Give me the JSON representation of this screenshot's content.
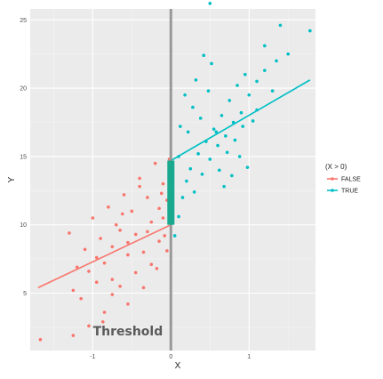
{
  "chart_data": {
    "type": "scatter",
    "title": "",
    "xlabel": "X",
    "ylabel": "Y",
    "xlim": [
      -1.8,
      1.85
    ],
    "ylim": [
      0.8,
      25.8
    ],
    "x_ticks": [
      -1,
      0,
      1
    ],
    "y_ticks": [
      5,
      10,
      15,
      20,
      25
    ],
    "grid": true,
    "legend": {
      "title": "(X > 0)",
      "position": "right"
    },
    "annotation": {
      "text": "Threshold",
      "x": -0.55,
      "y": 1.9
    },
    "threshold_x": 0,
    "series": [
      {
        "name": "FALSE",
        "color": "#F8766D",
        "fit_line": {
          "x": [
            -1.7,
            0
          ],
          "y": [
            5.4,
            10.0
          ]
        },
        "points": [
          [
            -1.67,
            1.6
          ],
          [
            -1.25,
            1.9
          ],
          [
            -1.05,
            2.6
          ],
          [
            -0.87,
            2.9
          ],
          [
            -1.25,
            5.2
          ],
          [
            -1.15,
            4.6
          ],
          [
            -1.05,
            6.6
          ],
          [
            -0.95,
            5.8
          ],
          [
            -0.85,
            7.2
          ],
          [
            -0.75,
            6.0
          ],
          [
            -0.65,
            5.5
          ],
          [
            -0.55,
            7.8
          ],
          [
            -0.45,
            6.5
          ],
          [
            -0.35,
            8.0
          ],
          [
            -0.25,
            7.1
          ],
          [
            -0.15,
            8.8
          ],
          [
            -0.05,
            8.1
          ],
          [
            -1.1,
            8.2
          ],
          [
            -0.9,
            9.0
          ],
          [
            -0.7,
            10.0
          ],
          [
            -0.5,
            11.0
          ],
          [
            -0.3,
            12.0
          ],
          [
            -0.1,
            13.0
          ],
          [
            -0.2,
            14.5
          ],
          [
            -0.4,
            13.4
          ],
          [
            -0.6,
            12.2
          ],
          [
            -0.8,
            11.3
          ],
          [
            -1.0,
            10.5
          ],
          [
            -0.3,
            9.5
          ],
          [
            -0.1,
            10.5
          ],
          [
            -0.05,
            11.8
          ],
          [
            -0.02,
            14.8
          ],
          [
            -0.15,
            11.2
          ],
          [
            -0.25,
            10.2
          ],
          [
            -0.45,
            9.3
          ],
          [
            -0.55,
            8.7
          ],
          [
            -0.65,
            9.6
          ],
          [
            -0.75,
            8.4
          ],
          [
            -0.95,
            7.6
          ],
          [
            -1.2,
            6.9
          ],
          [
            -1.3,
            9.4
          ],
          [
            -0.35,
            5.4
          ],
          [
            -0.55,
            4.2
          ],
          [
            -0.85,
            3.6
          ],
          [
            -0.75,
            4.9
          ],
          [
            -0.4,
            12.8
          ],
          [
            -0.12,
            12.3
          ],
          [
            -0.08,
            9.2
          ],
          [
            -0.18,
            6.8
          ],
          [
            -0.62,
            10.8
          ]
        ]
      },
      {
        "name": "TRUE",
        "color": "#00BFC4",
        "fit_line": {
          "x": [
            0,
            1.78
          ],
          "y": [
            14.7,
            20.6
          ]
        },
        "points": [
          [
            0.05,
            9.2
          ],
          [
            0.1,
            10.6
          ],
          [
            0.15,
            12.0
          ],
          [
            0.2,
            13.2
          ],
          [
            0.25,
            14.1
          ],
          [
            0.3,
            12.4
          ],
          [
            0.35,
            15.2
          ],
          [
            0.4,
            13.7
          ],
          [
            0.45,
            16.1
          ],
          [
            0.5,
            14.8
          ],
          [
            0.55,
            17.0
          ],
          [
            0.6,
            15.8
          ],
          [
            0.65,
            18.0
          ],
          [
            0.7,
            16.5
          ],
          [
            0.75,
            19.1
          ],
          [
            0.8,
            17.5
          ],
          [
            0.85,
            20.2
          ],
          [
            0.9,
            18.2
          ],
          [
            0.95,
            21.0
          ],
          [
            1.0,
            19.5
          ],
          [
            1.05,
            17.6
          ],
          [
            1.1,
            20.5
          ],
          [
            1.2,
            21.3
          ],
          [
            1.3,
            19.8
          ],
          [
            1.35,
            22.0
          ],
          [
            1.4,
            24.6
          ],
          [
            1.5,
            22.5
          ],
          [
            1.78,
            24.2
          ],
          [
            1.2,
            23.1
          ],
          [
            1.1,
            18.4
          ],
          [
            0.1,
            15.0
          ],
          [
            0.12,
            17.2
          ],
          [
            0.18,
            19.5
          ],
          [
            0.22,
            16.8
          ],
          [
            0.28,
            18.6
          ],
          [
            0.32,
            20.6
          ],
          [
            0.38,
            17.8
          ],
          [
            0.42,
            22.4
          ],
          [
            0.48,
            19.8
          ],
          [
            0.52,
            21.8
          ],
          [
            0.58,
            16.8
          ],
          [
            0.62,
            14.0
          ],
          [
            0.68,
            12.8
          ],
          [
            0.72,
            15.3
          ],
          [
            0.78,
            13.6
          ],
          [
            0.82,
            16.2
          ],
          [
            0.88,
            15.0
          ],
          [
            0.92,
            17.2
          ],
          [
            0.98,
            14.2
          ],
          [
            0.5,
            26.2
          ]
        ]
      }
    ]
  }
}
